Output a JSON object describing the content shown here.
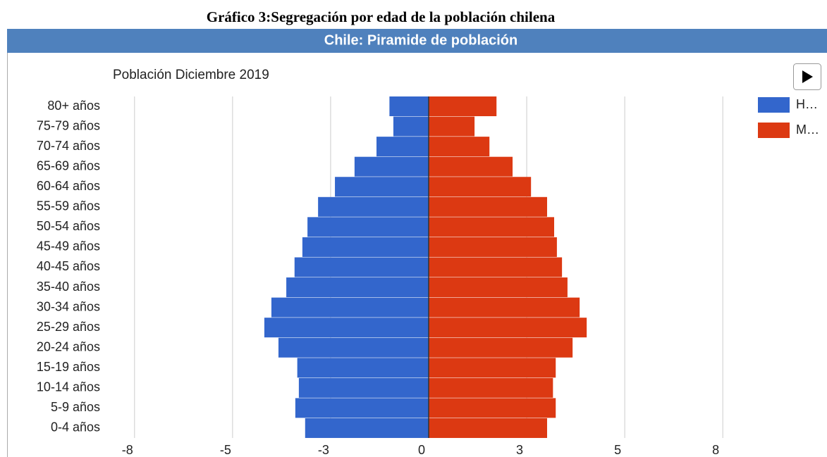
{
  "chart_data": {
    "type": "pyramid",
    "caption": "Gráfico 3:Segregación por edad de la población chilena",
    "header": "Chile: Piramide de población",
    "title": "Población Diciembre 2019",
    "categories": [
      "80+ años",
      "75-79 años",
      "70-74 años",
      "65-69 años",
      "60-64 años",
      "55-59 años",
      "50-54 años",
      "45-49 años",
      "40-45 años",
      "35-40 años",
      "30-34 años",
      "25-29 años",
      "20-24 años",
      "15-19 años",
      "10-14 años",
      "5-9 años",
      "0-4 años"
    ],
    "series": [
      {
        "name": "H…",
        "color": "#3366cc",
        "values": [
          -1.0,
          -0.9,
          -1.33,
          -1.89,
          -2.39,
          -2.82,
          -3.09,
          -3.22,
          -3.42,
          -3.63,
          -4.01,
          -4.19,
          -3.83,
          -3.35,
          -3.31,
          -3.4,
          -3.15
        ]
      },
      {
        "name": "M…",
        "color": "#dc3912",
        "values": [
          1.73,
          1.17,
          1.55,
          2.14,
          2.61,
          3.02,
          3.2,
          3.27,
          3.4,
          3.54,
          3.85,
          4.03,
          3.67,
          3.24,
          3.17,
          3.24,
          3.02
        ]
      }
    ],
    "xlim": [
      -8,
      8
    ],
    "xticks": [
      {
        "value": -7.5,
        "label": "-8"
      },
      -5,
      {
        "value": -2.5,
        "label": "-3"
      },
      0,
      {
        "value": 2.5,
        "label": "3"
      },
      5,
      {
        "value": 7.5,
        "label": "8"
      }
    ],
    "grid": true,
    "legend": "right"
  }
}
